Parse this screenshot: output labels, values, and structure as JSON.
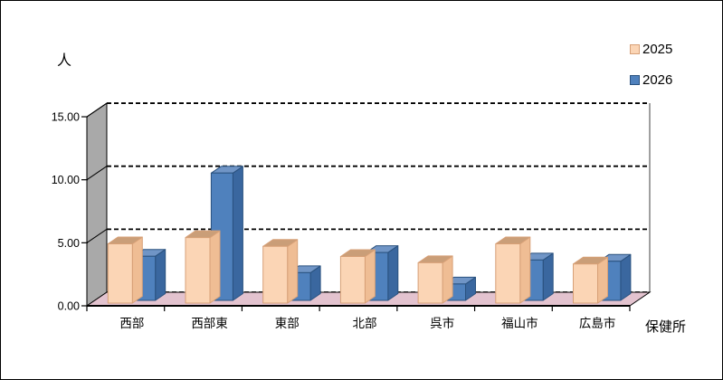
{
  "chart_data": {
    "type": "bar",
    "style": "3d-clustered",
    "title": "",
    "ylabel": "人",
    "xlabel": "保健所",
    "categories": [
      "西部",
      "西部東",
      "東部",
      "北部",
      "呉市",
      "福山市",
      "広島市"
    ],
    "series": [
      {
        "name": "2025",
        "values": [
          4.7,
          5.2,
          4.5,
          3.7,
          3.2,
          4.7,
          3.1
        ],
        "color": "#FBD5B5",
        "color_top": "#CA9E78",
        "color_side": "#EFBD94",
        "color_border": "#D7A077"
      },
      {
        "name": "2026",
        "values": [
          3.5,
          10.1,
          2.2,
          3.8,
          1.3,
          3.2,
          3.1
        ],
        "color": "#4F81BD",
        "color_top": "#7095C6",
        "color_side": "#3A679F",
        "color_border": "#2A527F"
      }
    ],
    "ylim": [
      0,
      15
    ],
    "ytick_step": 5,
    "ytick_labels": [
      "0.00",
      "5.00",
      "10.00",
      "15.00"
    ],
    "grid": "dashed-horizontal",
    "legend_position": "top-right",
    "colors": {
      "wall_left": "#A9A9A9",
      "wall_back": "#FFFFFF",
      "wall_edge": "#808080",
      "floor": "#E3C3CF",
      "gridline": "#000000",
      "text": "#000000"
    }
  }
}
